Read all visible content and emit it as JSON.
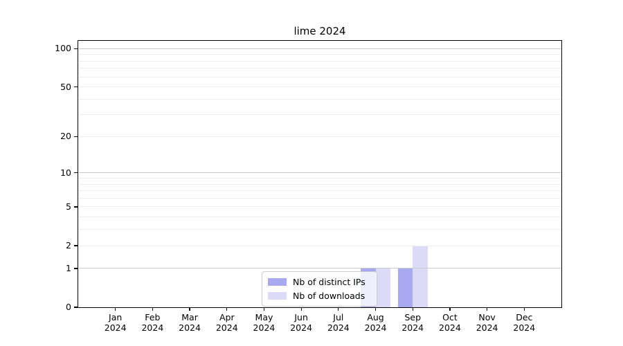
{
  "chart_data": {
    "type": "bar",
    "title": "lime 2024",
    "categories": [
      "Jan",
      "Feb",
      "Mar",
      "Apr",
      "May",
      "Jun",
      "Jul",
      "Aug",
      "Sep",
      "Oct",
      "Nov",
      "Dec"
    ],
    "x_tick_year": "2024",
    "series": [
      {
        "name": "Nb of distinct IPs",
        "color": "#a9a9f1",
        "values": [
          0,
          0,
          0,
          0,
          0,
          0,
          0,
          1,
          1,
          0,
          0,
          0
        ]
      },
      {
        "name": "Nb of downloads",
        "color": "#dbdbf8",
        "values": [
          0,
          0,
          0,
          0,
          0,
          0,
          0,
          1,
          2,
          0,
          0,
          0
        ]
      }
    ],
    "yscale": "log1p",
    "ylim": [
      0,
      115
    ],
    "y_tick_labels": [
      100,
      50,
      20,
      10,
      5,
      2,
      1,
      0
    ],
    "y_major_gridlines": [
      1,
      10,
      100
    ],
    "y_minor_gridlines": [
      2,
      3,
      4,
      5,
      6,
      7,
      8,
      9,
      20,
      30,
      40,
      50,
      60,
      70,
      80,
      90
    ],
    "legend_position": "lower center",
    "grid": "both",
    "colors": {
      "bar_distinct_ips": "#a9a9f1",
      "bar_downloads": "#dbdbf8",
      "major_grid": "#c9c9c9",
      "minor_grid": "#ededed",
      "axis": "#000000",
      "legend_border": "#cccccc",
      "background": "#ffffff"
    }
  }
}
